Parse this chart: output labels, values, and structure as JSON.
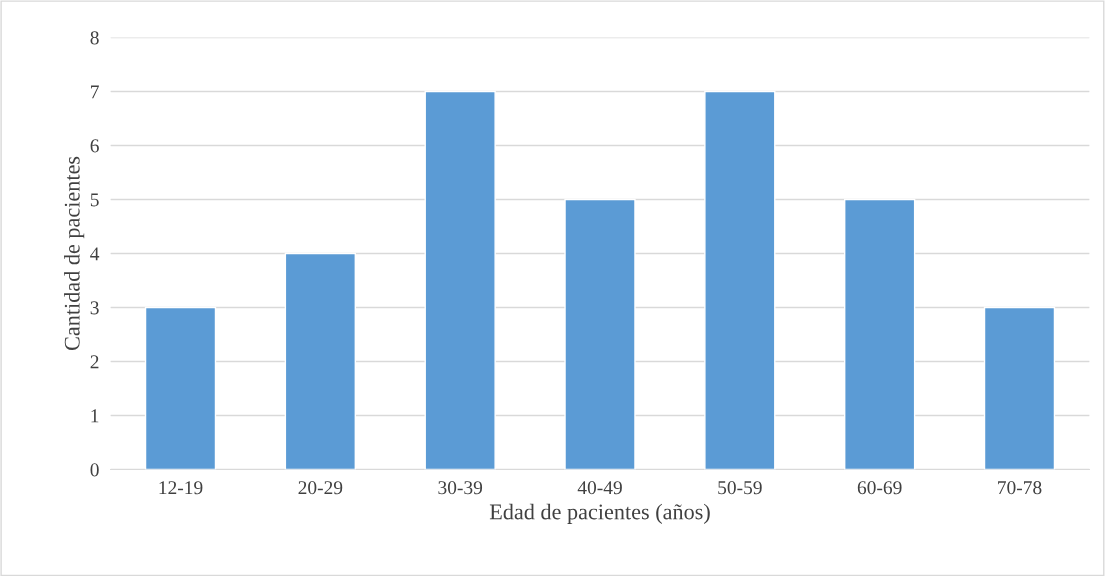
{
  "chart_data": {
    "type": "bar",
    "xlabel": "Edad de pacientes (años)",
    "ylabel": "Cantidad de pacientes",
    "categories": [
      "12-19",
      "20-29",
      "30-39",
      "40-49",
      "50-59",
      "60-69",
      "70-78"
    ],
    "values": [
      3,
      4,
      7,
      5,
      7,
      5,
      3
    ],
    "color": "#5b9bd5",
    "ylim": [
      0,
      8
    ],
    "yticks": [
      0,
      1,
      2,
      3,
      4,
      5,
      6,
      7,
      8
    ],
    "grid": "y"
  }
}
